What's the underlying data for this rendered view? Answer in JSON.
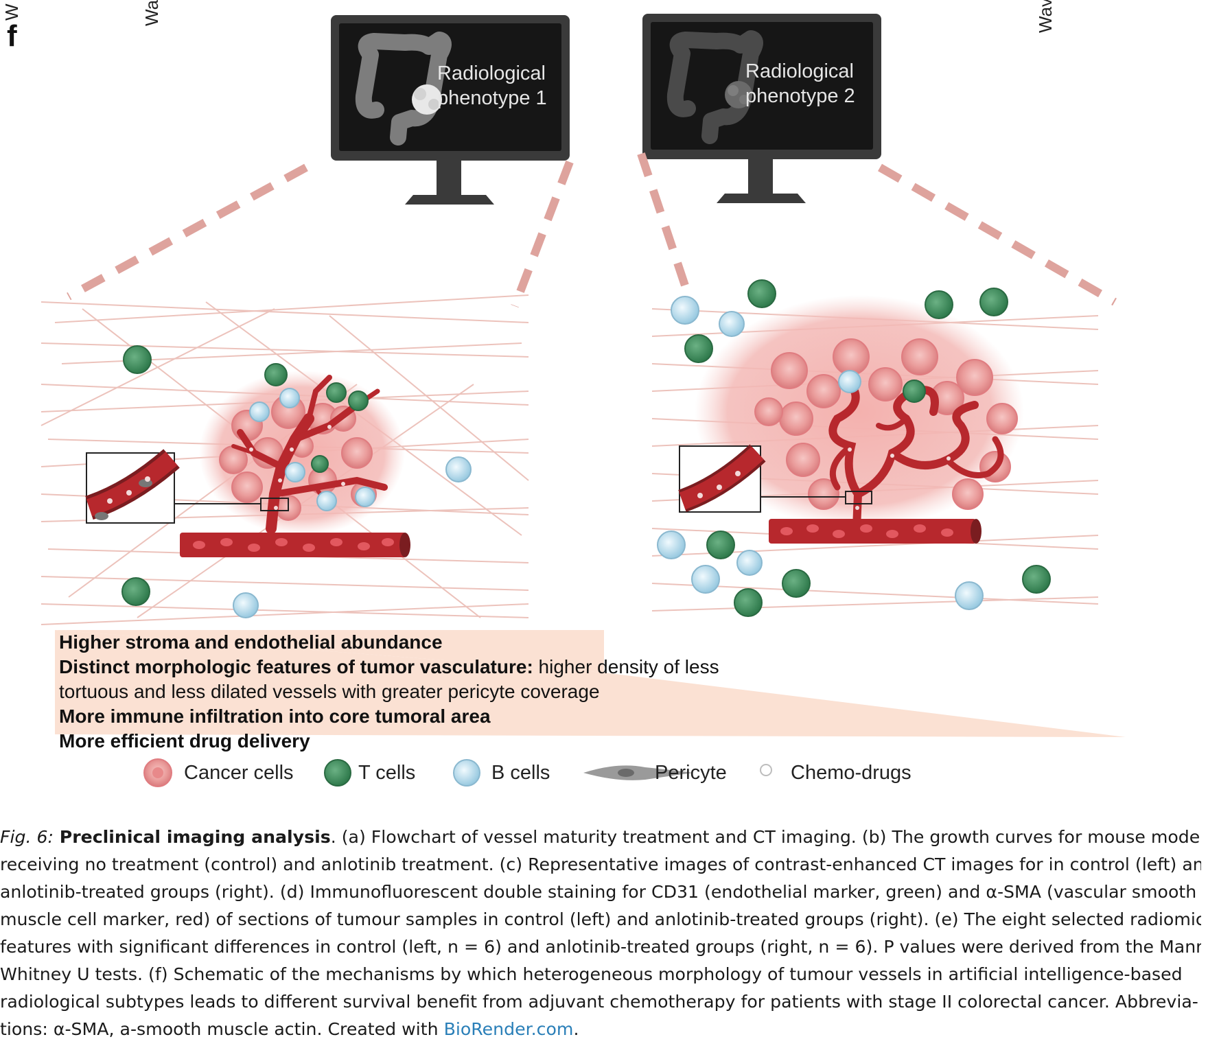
{
  "panel_label": "f",
  "side_labels": {
    "left_top": "W",
    "left_mid": "Wa",
    "right": "Wav"
  },
  "monitors": [
    {
      "line1": "Radiological",
      "line2": "phenotype 1"
    },
    {
      "line1": "Radiological",
      "line2": "phenotype 2"
    }
  ],
  "findings": {
    "line1": "Higher stroma and endothelial abundance",
    "line2_bold": "Distinct morphologic features of tumor vasculature:",
    "line2_rest": " higher density of less",
    "line3": "tortuous and less dilated vessels with greater pericyte coverage",
    "line4": "More immune infiltration into core tumoral area",
    "line5": "More efficient drug delivery"
  },
  "legend": [
    {
      "label": "Cancer cells",
      "icon": "cancer-cell-icon",
      "color": "#e8898a"
    },
    {
      "label": "T cells",
      "icon": "t-cell-icon",
      "color": "#3d8a5a"
    },
    {
      "label": "B cells",
      "icon": "b-cell-icon",
      "color": "#a9d3e6"
    },
    {
      "label": "Pericyte",
      "icon": "pericyte-icon",
      "color": "#9a9a9a"
    },
    {
      "label": "Chemo-drugs",
      "icon": "chemo-drug-icon",
      "color": "#ffffff"
    }
  ],
  "caption": {
    "fig_label": "Fig. 6:",
    "fig_title": " Preclinical imaging analysis",
    "lines": [
      ". (a) Flowchart of vessel maturity treatment and CT imaging. (b) The growth curves for mouse models",
      "receiving no treatment (control) and anlotinib treatment. (c) Representative images of contrast-enhanced CT images for in control (left) and",
      "anlotinib-treated groups (right). (d) Immunofluorescent double staining for CD31 (endothelial marker, green) and α-SMA (vascular smooth",
      "muscle cell marker, red) of sections of tumour samples in control (left) and anlotinib-treated groups (right). (e) The eight selected radiomic",
      "features with significant differences in control (left, n = 6) and anlotinib-treated groups (right, n = 6). P values were derived from the Mann–",
      "Whitney U tests. (f) Schematic of the mechanisms by which heterogeneous morphology of tumour vessels in artificial intelligence-based",
      "radiological subtypes leads to different survival benefit from adjuvant chemotherapy for patients with stage II colorectal cancer. Abbrevia-",
      "tions: α-SMA, a-smooth muscle actin. Created with "
    ],
    "link_text": "BioRender.com",
    "end": "."
  },
  "colors": {
    "stroma_line": "#e9b8b0",
    "tumor": "#f2a9a6",
    "vessel": "#b7282d",
    "dashed": "#dea39d",
    "findings_bg": "#fbe1d3",
    "monitor_frame": "#3a3a3a",
    "monitor_screen": "#151515"
  }
}
